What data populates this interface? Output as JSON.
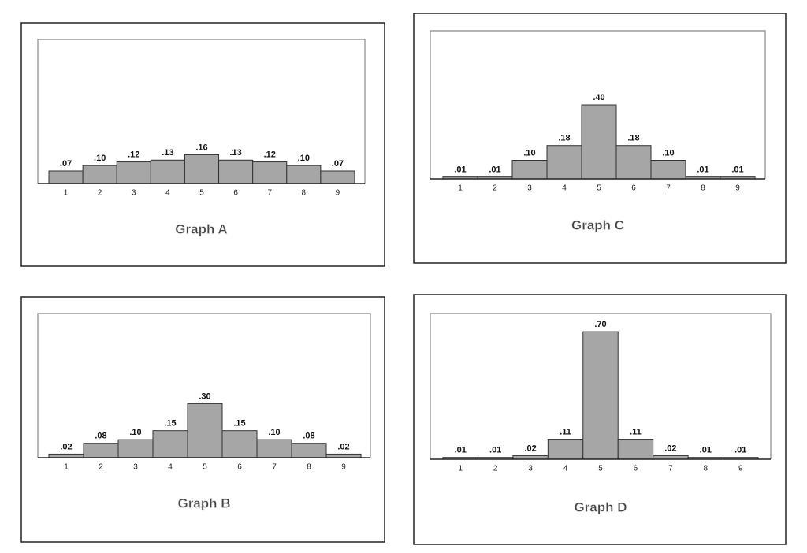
{
  "chart_data": [
    {
      "type": "bar",
      "title": "Graph A",
      "categories": [
        "1",
        "2",
        "3",
        "4",
        "5",
        "6",
        "7",
        "8",
        "9"
      ],
      "values": [
        0.07,
        0.1,
        0.12,
        0.13,
        0.16,
        0.13,
        0.12,
        0.1,
        0.07
      ],
      "value_labels": [
        ".07",
        ".10",
        ".12",
        ".13",
        ".16",
        ".13",
        ".12",
        ".10",
        ".07"
      ],
      "color": "#a6a6a6",
      "ylim": [
        0,
        0.8
      ]
    },
    {
      "type": "bar",
      "title": "Graph B",
      "categories": [
        "1",
        "2",
        "3",
        "4",
        "5",
        "6",
        "7",
        "8",
        "9"
      ],
      "values": [
        0.02,
        0.08,
        0.1,
        0.15,
        0.3,
        0.15,
        0.1,
        0.08,
        0.02
      ],
      "value_labels": [
        ".02",
        ".08",
        ".10",
        ".15",
        ".30",
        ".15",
        ".10",
        ".08",
        ".02"
      ],
      "color": "#a6a6a6",
      "ylim": [
        0,
        0.8
      ]
    },
    {
      "type": "bar",
      "title": "Graph C",
      "categories": [
        "1",
        "2",
        "3",
        "4",
        "5",
        "6",
        "7",
        "8",
        "9"
      ],
      "values": [
        0.01,
        0.01,
        0.1,
        0.18,
        0.4,
        0.18,
        0.1,
        0.01,
        0.01
      ],
      "value_labels": [
        ".01",
        ".01",
        ".10",
        ".18",
        ".40",
        ".18",
        ".10",
        ".01",
        ".01"
      ],
      "color": "#a6a6a6",
      "ylim": [
        0,
        0.8
      ]
    },
    {
      "type": "bar",
      "title": "Graph D",
      "categories": [
        "1",
        "2",
        "3",
        "4",
        "5",
        "6",
        "7",
        "8",
        "9"
      ],
      "values": [
        0.01,
        0.01,
        0.02,
        0.11,
        0.7,
        0.11,
        0.02,
        0.01,
        0.01
      ],
      "value_labels": [
        ".01",
        ".01",
        ".02",
        ".11",
        ".70",
        ".11",
        ".02",
        ".01",
        ".01"
      ],
      "color": "#a6a6a6",
      "ylim": [
        0,
        0.8
      ]
    }
  ]
}
